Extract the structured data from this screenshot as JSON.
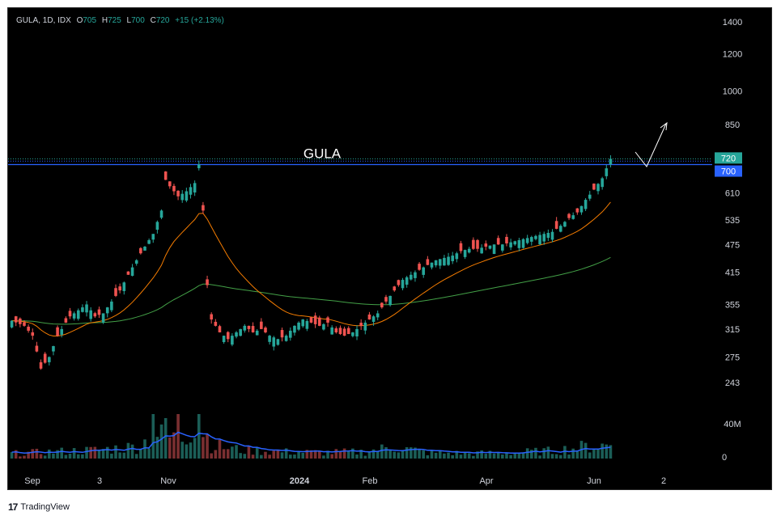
{
  "legend": {
    "symbol": "GULA, 1D, IDX",
    "o_label": "O",
    "o": "705",
    "h_label": "H",
    "h": "725",
    "l_label": "L",
    "l": "700",
    "c_label": "C",
    "c": "720",
    "change": "+15 (+2.13%)"
  },
  "annotation": "GULA",
  "footer": {
    "logo": "17",
    "brand": "TradingView"
  },
  "colors": {
    "up": "#26a69a",
    "down": "#ef5350",
    "ma_fast": "#f57c00",
    "ma_slow": "#43a047",
    "vol_ma": "#2962ff",
    "resistance": "#2962ff",
    "last_price_bg": "#26a69a",
    "level_bg": "#2962ff"
  },
  "chart_data": {
    "type": "candlestick",
    "price_axis": {
      "scale": "log",
      "ticks": [
        "1400",
        "1200",
        "1000",
        "850",
        "720",
        "700",
        "610",
        "535",
        "475",
        "415",
        "355",
        "315",
        "275",
        "243"
      ],
      "badges": [
        {
          "label": "720",
          "value": 720,
          "kind": "last_price"
        },
        {
          "label": "700",
          "value": 700,
          "kind": "level"
        }
      ]
    },
    "volume_axis": {
      "ticks": [
        "40M",
        "0"
      ]
    },
    "time_axis": [
      "Sep",
      "3",
      "Nov",
      "2024",
      "Feb",
      "Apr",
      "Jun",
      "2"
    ],
    "resistance_level": 700,
    "last_price": 720,
    "indicators": [
      "moving_average_fast",
      "moving_average_slow",
      "volume_moving_average"
    ],
    "drawing": "arrow projecting upward from breakout above 700",
    "price_path": [
      [
        0,
        328
      ],
      [
        3,
        320
      ],
      [
        5,
        305
      ],
      [
        7,
        260
      ],
      [
        9,
        275
      ],
      [
        11,
        305
      ],
      [
        14,
        335
      ],
      [
        16,
        345
      ],
      [
        18,
        355
      ],
      [
        20,
        335
      ],
      [
        22,
        340
      ],
      [
        24,
        360
      ],
      [
        26,
        380
      ],
      [
        28,
        410
      ],
      [
        30,
        440
      ],
      [
        32,
        470
      ],
      [
        34,
        500
      ],
      [
        36,
        560
      ],
      [
        37,
        650
      ],
      [
        38,
        630
      ],
      [
        40,
        600
      ],
      [
        42,
        615
      ],
      [
        44,
        640
      ],
      [
        45,
        700
      ],
      [
        46,
        560
      ],
      [
        47,
        390
      ],
      [
        48,
        330
      ],
      [
        50,
        310
      ],
      [
        52,
        300
      ],
      [
        54,
        310
      ],
      [
        56,
        320
      ],
      [
        58,
        310
      ],
      [
        60,
        315
      ],
      [
        62,
        305
      ],
      [
        64,
        300
      ],
      [
        66,
        305
      ],
      [
        68,
        320
      ],
      [
        70,
        330
      ],
      [
        72,
        325
      ],
      [
        74,
        320
      ],
      [
        76,
        325
      ],
      [
        78,
        310
      ],
      [
        80,
        305
      ],
      [
        82,
        310
      ],
      [
        84,
        320
      ],
      [
        86,
        330
      ],
      [
        88,
        340
      ],
      [
        90,
        360
      ],
      [
        92,
        380
      ],
      [
        94,
        400
      ],
      [
        96,
        410
      ],
      [
        98,
        420
      ],
      [
        100,
        430
      ],
      [
        102,
        440
      ],
      [
        104,
        445
      ],
      [
        106,
        450
      ],
      [
        108,
        460
      ],
      [
        110,
        465
      ],
      [
        112,
        465
      ],
      [
        114,
        470
      ],
      [
        116,
        475
      ],
      [
        118,
        475
      ],
      [
        120,
        480
      ],
      [
        122,
        485
      ],
      [
        124,
        490
      ],
      [
        126,
        495
      ],
      [
        128,
        500
      ],
      [
        130,
        505
      ],
      [
        132,
        520
      ],
      [
        134,
        540
      ],
      [
        136,
        555
      ],
      [
        138,
        590
      ],
      [
        140,
        620
      ],
      [
        142,
        655
      ],
      [
        144,
        720
      ]
    ],
    "volume_profile": [
      [
        0,
        6
      ],
      [
        10,
        8
      ],
      [
        20,
        10
      ],
      [
        30,
        14
      ],
      [
        35,
        28
      ],
      [
        40,
        22
      ],
      [
        45,
        45
      ],
      [
        48,
        16
      ],
      [
        55,
        10
      ],
      [
        65,
        8
      ],
      [
        75,
        7
      ],
      [
        85,
        8
      ],
      [
        92,
        14
      ],
      [
        100,
        7
      ],
      [
        110,
        6
      ],
      [
        120,
        7
      ],
      [
        130,
        9
      ],
      [
        138,
        14
      ],
      [
        144,
        16
      ]
    ]
  }
}
